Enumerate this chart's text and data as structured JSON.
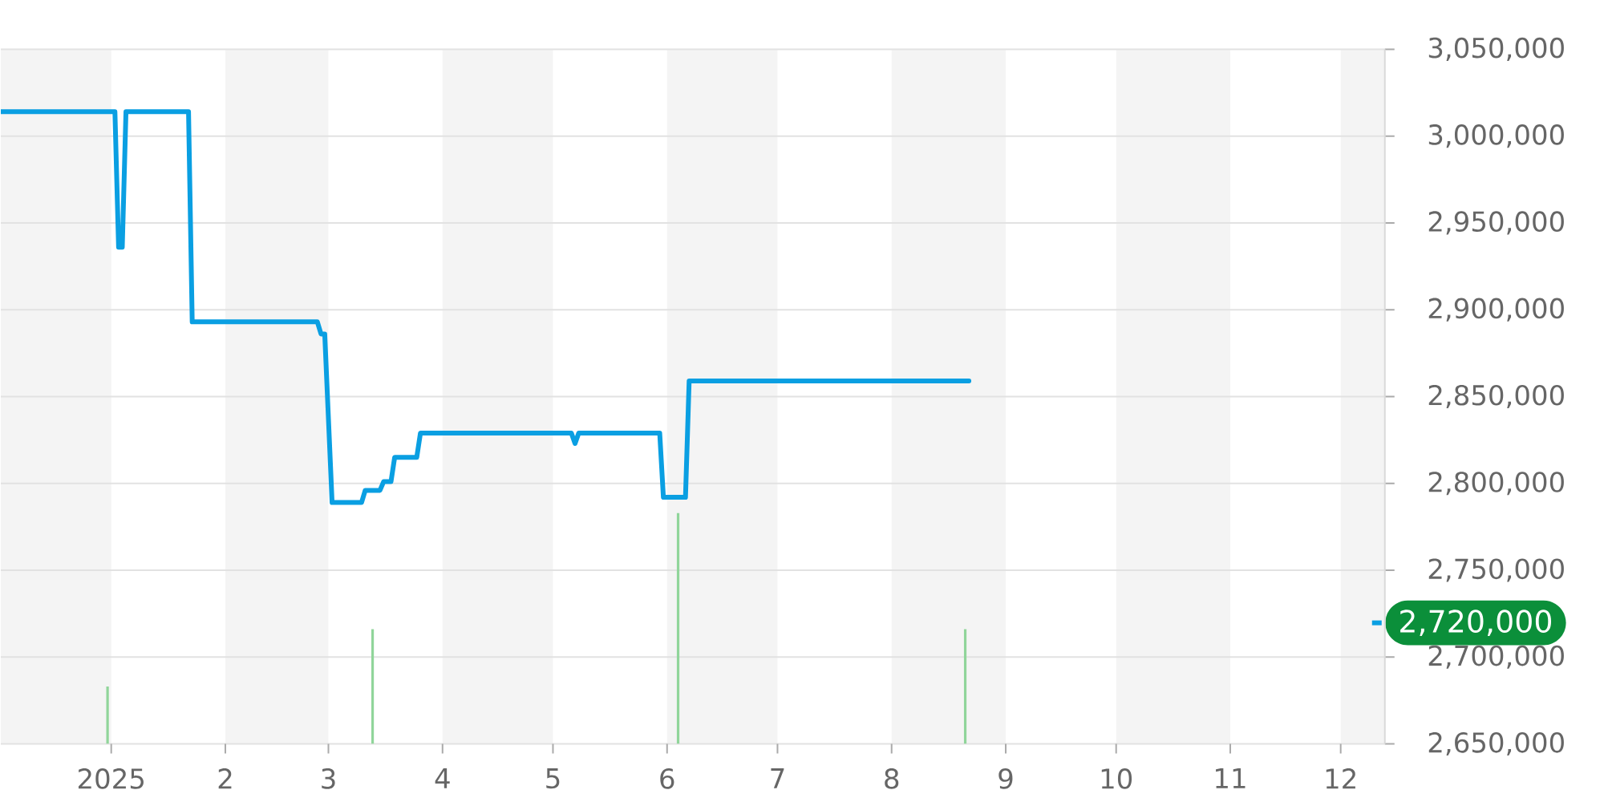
{
  "chart_data": {
    "type": "line",
    "series": [
      {
        "color": "#0a9fe2",
        "x": [
          "2024-12-02",
          "2025-01-02",
          "2025-01-03",
          "2025-01-04",
          "2025-01-05",
          "2025-01-22",
          "2025-01-23",
          "2025-02-26",
          "2025-02-27",
          "2025-02-28",
          "2025-03-02",
          "2025-03-10",
          "2025-03-11",
          "2025-03-15",
          "2025-03-16",
          "2025-03-18",
          "2025-03-19",
          "2025-03-25",
          "2025-03-26",
          "2025-05-06",
          "2025-05-07",
          "2025-05-08",
          "2025-05-30",
          "2025-05-31",
          "2025-06-06",
          "2025-06-07",
          "2025-08-22"
        ],
        "values": [
          3014000,
          3014000,
          2936000,
          2936000,
          3014000,
          3014000,
          2893000,
          2893000,
          2886000,
          2886000,
          2789000,
          2789000,
          2796000,
          2796000,
          2801000,
          2801000,
          2815000,
          2815000,
          2829000,
          2829000,
          2823000,
          2829000,
          2829000,
          2792000,
          2792000,
          2859000,
          2859000
        ]
      },
      {
        "type": "bar",
        "color": "#90d59a",
        "x": [
          "2024-12-31",
          "2025-03-13",
          "2025-06-04",
          "2025-08-21"
        ],
        "values": [
          2683000,
          2716000,
          2783000,
          2716000
        ]
      }
    ],
    "xlim": [
      "2024-12-02",
      "2025-12-13"
    ],
    "xticks": [
      {
        "value": "2025-01-01",
        "label": "2025"
      },
      {
        "value": "2025-02-01",
        "label": "2"
      },
      {
        "value": "2025-03-01",
        "label": "3"
      },
      {
        "value": "2025-04-01",
        "label": "4"
      },
      {
        "value": "2025-05-01",
        "label": "5"
      },
      {
        "value": "2025-06-01",
        "label": "6"
      },
      {
        "value": "2025-07-01",
        "label": "7"
      },
      {
        "value": "2025-08-01",
        "label": "8"
      },
      {
        "value": "2025-09-01",
        "label": "9"
      },
      {
        "value": "2025-10-01",
        "label": "10"
      },
      {
        "value": "2025-11-01",
        "label": "11"
      },
      {
        "value": "2025-12-01",
        "label": "12"
      }
    ],
    "ylim": [
      2650000,
      3050000
    ],
    "yticks": [
      {
        "value": 2650000,
        "label": "2,650,000"
      },
      {
        "value": 2700000,
        "label": "2,700,000"
      },
      {
        "value": 2750000,
        "label": "2,750,000"
      },
      {
        "value": 2800000,
        "label": "2,800,000"
      },
      {
        "value": 2850000,
        "label": "2,850,000"
      },
      {
        "value": 2900000,
        "label": "2,900,000"
      },
      {
        "value": 2950000,
        "label": "2,950,000"
      },
      {
        "value": 3000000,
        "label": "3,000,000"
      },
      {
        "value": 3050000,
        "label": "3,050,000"
      }
    ],
    "grid": "y",
    "bands": [
      {
        "axis": "x",
        "from": "2024-12-02",
        "to": "2025-01-01",
        "color": "#f4f4f4"
      },
      {
        "axis": "x",
        "from": "2025-02-01",
        "to": "2025-03-01",
        "color": "#f4f4f4"
      },
      {
        "axis": "x",
        "from": "2025-04-01",
        "to": "2025-05-01",
        "color": "#f4f4f4"
      },
      {
        "axis": "x",
        "from": "2025-06-01",
        "to": "2025-07-01",
        "color": "#f4f4f4"
      },
      {
        "axis": "x",
        "from": "2025-08-01",
        "to": "2025-09-01",
        "color": "#f4f4f4"
      },
      {
        "axis": "x",
        "from": "2025-10-01",
        "to": "2025-11-01",
        "color": "#f4f4f4"
      },
      {
        "axis": "x",
        "from": "2025-12-01",
        "to": "2025-12-13",
        "color": "#f4f4f4"
      }
    ],
    "annotations": [
      "2,720,000"
    ]
  }
}
